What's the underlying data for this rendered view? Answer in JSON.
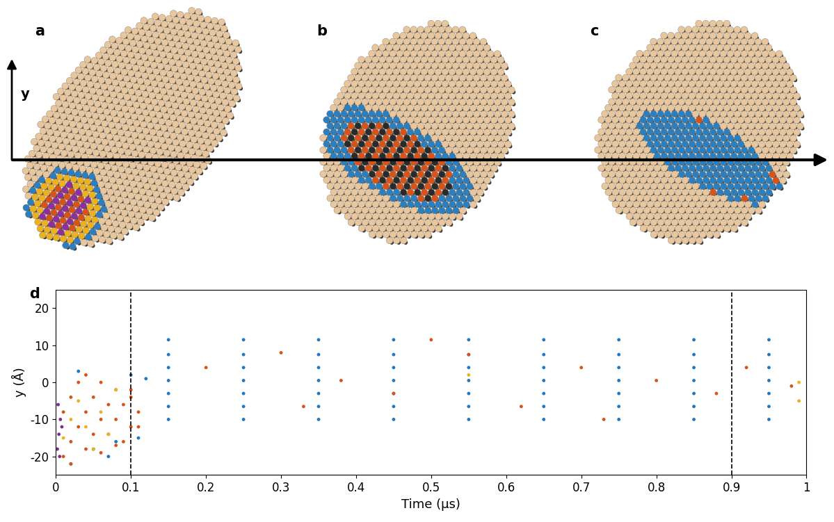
{
  "panels": {
    "labels": [
      "a",
      "b",
      "c"
    ],
    "axis_label": "y"
  },
  "chart_data": {
    "type": "scatter",
    "panel_label": "d",
    "x_label": "Time (μs)",
    "y_label": "y (Å)",
    "xlim": [
      0,
      1
    ],
    "ylim": [
      -25,
      25
    ],
    "xticks": [
      0,
      0.1,
      0.2,
      0.3,
      0.4,
      0.5,
      0.6,
      0.7,
      0.8,
      0.9,
      1
    ],
    "yticks": [
      -20,
      -10,
      0,
      10,
      20
    ],
    "vlines": [
      0,
      0.1,
      0.9
    ],
    "grid": false,
    "marker": "o",
    "series": [
      {
        "color": "#1f78c1",
        "x": [
          0.15,
          0.25,
          0.35,
          0.45,
          0.55,
          0.65,
          0.75,
          0.85,
          0.95,
          0.15,
          0.25,
          0.35,
          0.45,
          0.55,
          0.65,
          0.75,
          0.85,
          0.95,
          0.15,
          0.25,
          0.35,
          0.45,
          0.55,
          0.65,
          0.75,
          0.85,
          0.95,
          0.15,
          0.25,
          0.35,
          0.45,
          0.55,
          0.65,
          0.75,
          0.85,
          0.95,
          0.15,
          0.25,
          0.35,
          0.45,
          0.55,
          0.65,
          0.75,
          0.85,
          0.95,
          0.15,
          0.25,
          0.35,
          0.45,
          0.55,
          0.65,
          0.75,
          0.85,
          0.95,
          0.15,
          0.25,
          0.35,
          0.45,
          0.55,
          0.65,
          0.75,
          0.85,
          0.95,
          0.02,
          0.05,
          0.08,
          0.1,
          0.11,
          0.03,
          0.07,
          0.12
        ],
        "values": [
          -10,
          -10,
          -10,
          -10,
          -10,
          -10,
          -10,
          -10,
          -10,
          -6.5,
          -6.5,
          -6.5,
          -6.5,
          -6.5,
          -6.5,
          -6.5,
          -6.5,
          -6.5,
          -3,
          -3,
          -3,
          -3,
          -3,
          -3,
          -3,
          -3,
          -3,
          0.5,
          0.5,
          0.5,
          0.5,
          0.5,
          0.5,
          0.5,
          0.5,
          0.5,
          4,
          4,
          4,
          4,
          4,
          4,
          4,
          4,
          4,
          7.5,
          7.5,
          7.5,
          7.5,
          7.5,
          7.5,
          7.5,
          7.5,
          7.5,
          11.5,
          11.5,
          11.5,
          11.5,
          11.5,
          11.5,
          11.5,
          11.5,
          11.5,
          -22,
          -18,
          -16,
          2,
          -15,
          3,
          -20,
          1
        ]
      },
      {
        "color": "#d95319",
        "x": [
          0.01,
          0.02,
          0.03,
          0.04,
          0.05,
          0.06,
          0.07,
          0.08,
          0.09,
          0.1,
          0.11,
          0.01,
          0.02,
          0.03,
          0.04,
          0.05,
          0.06,
          0.07,
          0.08,
          0.09,
          0.1,
          0.11,
          0.02,
          0.04,
          0.06,
          0.08,
          0.1,
          0.2,
          0.3,
          0.38,
          0.45,
          0.55,
          0.62,
          0.7,
          0.8,
          0.88,
          0.98,
          0.33,
          0.5,
          0.73,
          0.92
        ],
        "values": [
          -20,
          -16,
          -12,
          -8,
          -4,
          0,
          -14,
          -10,
          -6,
          -2,
          -12,
          -8,
          -4,
          0,
          -18,
          -14,
          -10,
          -6,
          -2,
          -16,
          -12,
          -8,
          -22,
          2,
          -19,
          -17,
          -4,
          4,
          8,
          0.5,
          -3,
          7.5,
          -6.5,
          4,
          0.5,
          -3,
          -1,
          -6.5,
          11.5,
          -10,
          4
        ]
      },
      {
        "color": "#edb120",
        "x": [
          0.01,
          0.02,
          0.03,
          0.05,
          0.06,
          0.08,
          0.04,
          0.07,
          0.55,
          0.99,
          0.99
        ],
        "values": [
          -15,
          -10,
          -5,
          -18,
          -8,
          -2,
          -12,
          -14,
          2,
          0,
          -5
        ]
      },
      {
        "color": "#7e2f8e",
        "x": [
          0.002,
          0.004,
          0.006,
          0.003,
          0.005,
          0.008
        ],
        "values": [
          -18,
          -14,
          -10,
          -6,
          -20,
          -12
        ]
      }
    ]
  }
}
